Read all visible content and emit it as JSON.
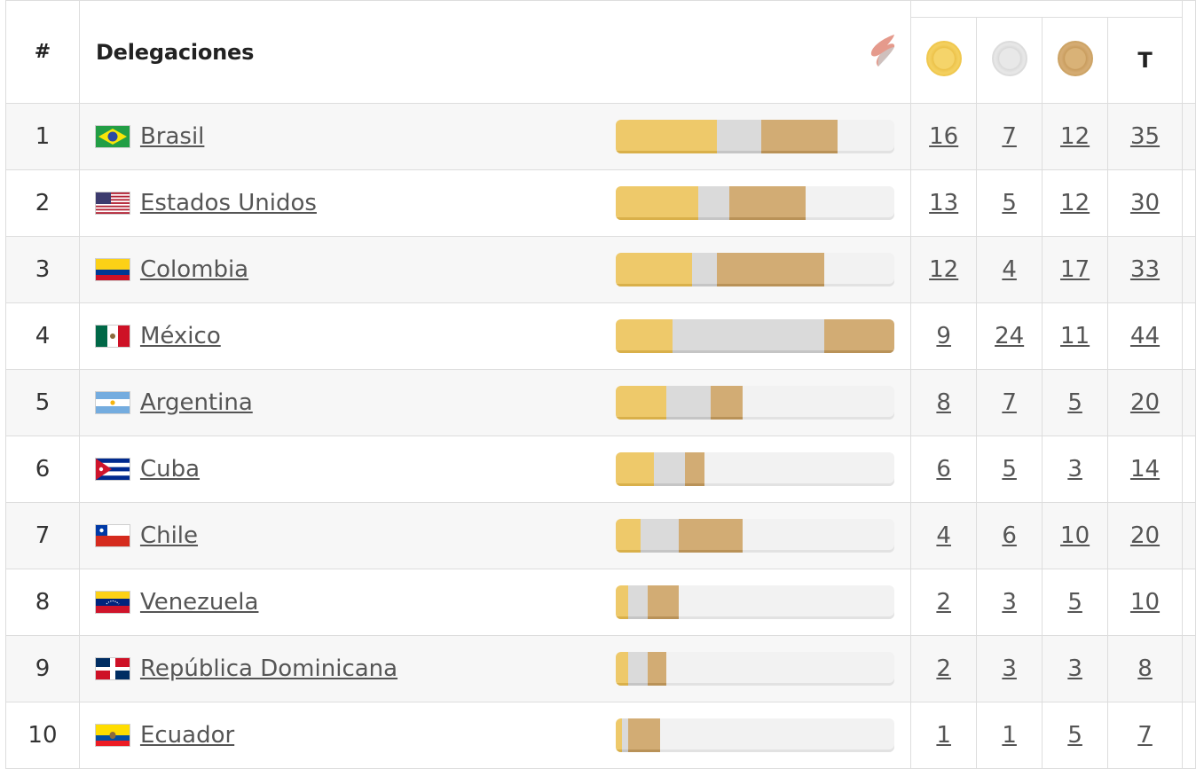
{
  "header": {
    "rank": "#",
    "delegations": "Delegaciones",
    "total": "T"
  },
  "colors": {
    "gold": "#eec96a",
    "silver": "#dadada",
    "bronze": "#d2ac74"
  },
  "rows": [
    {
      "rank": "1",
      "country": "Brasil",
      "flag": "brazil-flag",
      "gold": "16",
      "silver": "7",
      "bronze": "12",
      "total": "35"
    },
    {
      "rank": "2",
      "country": "Estados Unidos",
      "flag": "usa-flag",
      "gold": "13",
      "silver": "5",
      "bronze": "12",
      "total": "30"
    },
    {
      "rank": "3",
      "country": "Colombia",
      "flag": "colombia-flag",
      "gold": "12",
      "silver": "4",
      "bronze": "17",
      "total": "33"
    },
    {
      "rank": "4",
      "country": "México",
      "flag": "mexico-flag",
      "gold": "9",
      "silver": "24",
      "bronze": "11",
      "total": "44"
    },
    {
      "rank": "5",
      "country": "Argentina",
      "flag": "argentina-flag",
      "gold": "8",
      "silver": "7",
      "bronze": "5",
      "total": "20"
    },
    {
      "rank": "6",
      "country": "Cuba",
      "flag": "cuba-flag",
      "gold": "6",
      "silver": "5",
      "bronze": "3",
      "total": "14"
    },
    {
      "rank": "7",
      "country": "Chile",
      "flag": "chile-flag",
      "gold": "4",
      "silver": "6",
      "bronze": "10",
      "total": "20"
    },
    {
      "rank": "8",
      "country": "Venezuela",
      "flag": "venezuela-flag",
      "gold": "2",
      "silver": "3",
      "bronze": "5",
      "total": "10"
    },
    {
      "rank": "9",
      "country": "República Dominicana",
      "flag": "dominican-republic-flag",
      "gold": "2",
      "silver": "3",
      "bronze": "3",
      "total": "8"
    },
    {
      "rank": "10",
      "country": "Ecuador",
      "flag": "ecuador-flag",
      "gold": "1",
      "silver": "1",
      "bronze": "5",
      "total": "7"
    }
  ]
}
